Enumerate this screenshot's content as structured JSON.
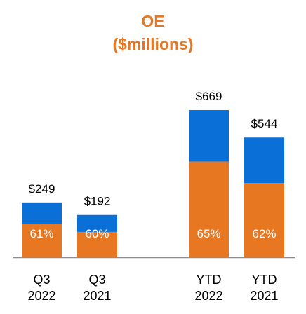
{
  "title": "OE",
  "subtitle": "($millions)",
  "colors": {
    "title": "#E87722",
    "bottom_segment": "#E87722",
    "top_segment": "#0A6FD6",
    "value_label": "#000000",
    "pct_label": "#FFFFFF",
    "axis": "#8C8C8C"
  },
  "chart_data": {
    "type": "bar",
    "stacked": true,
    "title": "OE",
    "subtitle": "($millions)",
    "categories": [
      [
        "Q3",
        "2022"
      ],
      [
        "Q3",
        "2021"
      ],
      [
        "YTD",
        "2022"
      ],
      [
        "YTD",
        "2021"
      ]
    ],
    "totals": [
      249,
      192,
      669,
      544
    ],
    "total_labels": [
      "$249",
      "$192",
      "$669",
      "$544"
    ],
    "bottom_share_pct": [
      61,
      60,
      65,
      62
    ],
    "pct_labels": [
      "61%",
      "60%",
      "65%",
      "62%"
    ],
    "series": [
      {
        "values": [
          152,
          115,
          435,
          337
        ]
      },
      {
        "values": [
          97,
          77,
          234,
          207
        ]
      }
    ],
    "ylim": [
      0,
      669
    ],
    "grid": false,
    "legend": "none"
  }
}
